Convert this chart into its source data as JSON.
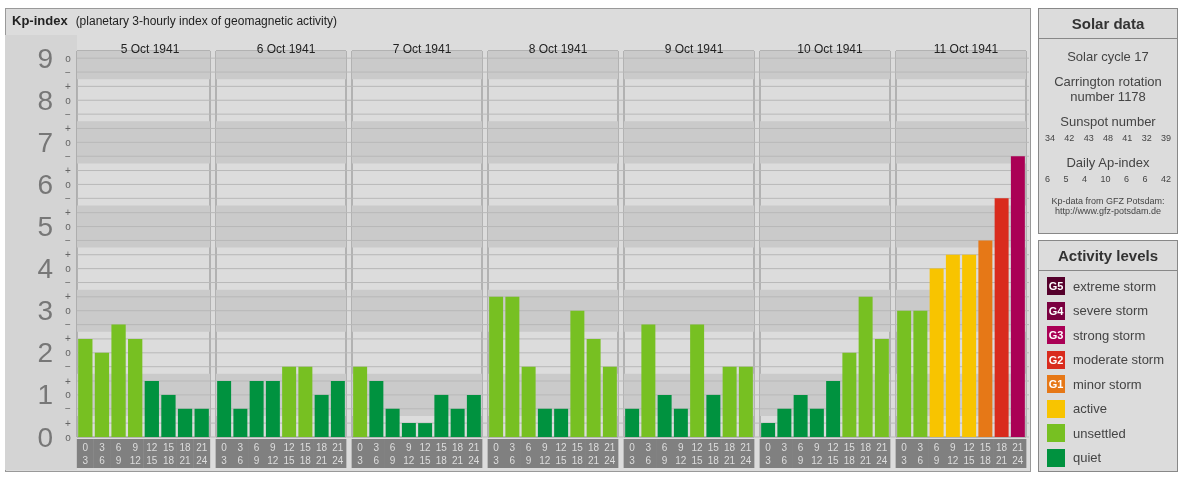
{
  "chart_data": [
    {
      "type": "bar",
      "title": "Kp-index",
      "subtitle": "(planetary 3-hourly index of geomagnetic activity)",
      "xlabel": "5 Oct 1941",
      "categories": [
        "0\n3",
        "3\n6",
        "6\n9",
        "9\n12",
        "12\n15",
        "15\n18",
        "18\n21",
        "21\n24"
      ],
      "values": [
        2.33,
        2,
        2.67,
        2.33,
        1.33,
        1,
        0.67,
        0.67
      ],
      "colors": [
        "#77c022",
        "#77c022",
        "#77c022",
        "#77c022",
        "#00923f",
        "#00923f",
        "#00923f",
        "#00923f"
      ],
      "ylim": [
        0,
        9.17
      ],
      "yticks": [
        0,
        1,
        2,
        3,
        4,
        5,
        6,
        7,
        8,
        9,
        {
          "value": 0.33,
          "label": null
        },
        {
          "value": 0.67,
          "label": null
        },
        {
          "value": 1.33,
          "label": null
        },
        {
          "value": 1.67,
          "label": null
        },
        {
          "value": 2.33,
          "label": null
        },
        {
          "value": 2.67,
          "label": null
        },
        {
          "value": 3.33,
          "label": null
        },
        {
          "value": 3.67,
          "label": null
        },
        {
          "value": 4.33,
          "label": null
        },
        {
          "value": 4.67,
          "label": null
        },
        {
          "value": 5.33,
          "label": null
        },
        {
          "value": 5.67,
          "label": null
        },
        {
          "value": 6.33,
          "label": null
        },
        {
          "value": 6.67,
          "label": null
        },
        {
          "value": 7.33,
          "label": null
        },
        {
          "value": 7.67,
          "label": null
        },
        {
          "value": 8.33,
          "label": null
        },
        {
          "value": 8.67,
          "label": null
        }
      ],
      "grid": "y",
      "bands": [
        {
          "axis": "y",
          "from": 0.5,
          "to": 1.5,
          "color": "#cacaca"
        },
        {
          "axis": "y",
          "from": 2.5,
          "to": 3.5,
          "color": "#cacaca"
        },
        {
          "axis": "y",
          "from": 4.5,
          "to": 5.5,
          "color": "#cacaca"
        },
        {
          "axis": "y",
          "from": 6.5,
          "to": 7.5,
          "color": "#cacaca"
        },
        {
          "axis": "y",
          "from": 8.5,
          "to": 9.17,
          "color": "#cacaca"
        }
      ],
      "annotations": [
        "o",
        "+",
        "−",
        "o",
        "+",
        "−",
        "o",
        "+",
        "−",
        "o",
        "+",
        "−",
        "o",
        "+",
        "−",
        "o",
        "+",
        "−",
        "o",
        "+",
        "−",
        "o",
        "+",
        "−",
        "o",
        "+",
        "−",
        "o"
      ]
    },
    {
      "type": "bar",
      "xlabel": "6 Oct 1941",
      "categories": [
        "0\n3",
        "3\n6",
        "6\n9",
        "9\n12",
        "12\n15",
        "15\n18",
        "18\n21",
        "21\n24"
      ],
      "values": [
        1.33,
        0.67,
        1.33,
        1.33,
        1.67,
        1.67,
        1,
        1.33
      ],
      "colors": [
        "#00923f",
        "#00923f",
        "#00923f",
        "#00923f",
        "#77c022",
        "#77c022",
        "#00923f",
        "#00923f"
      ],
      "ylim": [
        0,
        9.17
      ],
      "yticks": [
        0,
        0.33,
        0.67,
        1,
        1.33,
        1.67,
        2,
        2.33,
        2.67,
        3,
        3.33,
        3.67,
        4,
        4.33,
        4.67,
        5,
        5.33,
        5.67,
        6,
        6.33,
        6.67,
        7,
        7.33,
        7.67,
        8,
        8.33,
        8.67,
        9
      ],
      "tick_labels": "x",
      "grid": "y",
      "bands": [
        {
          "axis": "y",
          "from": 0.5,
          "to": 1.5,
          "color": "#cacaca"
        },
        {
          "axis": "y",
          "from": 2.5,
          "to": 3.5,
          "color": "#cacaca"
        },
        {
          "axis": "y",
          "from": 4.5,
          "to": 5.5,
          "color": "#cacaca"
        },
        {
          "axis": "y",
          "from": 6.5,
          "to": 7.5,
          "color": "#cacaca"
        },
        {
          "axis": "y",
          "from": 8.5,
          "to": 9.17,
          "color": "#cacaca"
        }
      ]
    },
    {
      "type": "bar",
      "xlabel": "7 Oct 1941",
      "categories": [
        "0\n3",
        "3\n6",
        "6\n9",
        "9\n12",
        "12\n15",
        "15\n18",
        "18\n21",
        "21\n24"
      ],
      "values": [
        1.67,
        1.33,
        0.67,
        0.33,
        0.33,
        1,
        0.67,
        1
      ],
      "colors": [
        "#77c022",
        "#00923f",
        "#00923f",
        "#00923f",
        "#00923f",
        "#00923f",
        "#00923f",
        "#00923f"
      ],
      "ylim": [
        0,
        9.17
      ],
      "yticks": [
        0,
        0.33,
        0.67,
        1,
        1.33,
        1.67,
        2,
        2.33,
        2.67,
        3,
        3.33,
        3.67,
        4,
        4.33,
        4.67,
        5,
        5.33,
        5.67,
        6,
        6.33,
        6.67,
        7,
        7.33,
        7.67,
        8,
        8.33,
        8.67,
        9
      ],
      "tick_labels": "x",
      "grid": "y",
      "bands": [
        {
          "axis": "y",
          "from": 0.5,
          "to": 1.5,
          "color": "#cacaca"
        },
        {
          "axis": "y",
          "from": 2.5,
          "to": 3.5,
          "color": "#cacaca"
        },
        {
          "axis": "y",
          "from": 4.5,
          "to": 5.5,
          "color": "#cacaca"
        },
        {
          "axis": "y",
          "from": 6.5,
          "to": 7.5,
          "color": "#cacaca"
        },
        {
          "axis": "y",
          "from": 8.5,
          "to": 9.17,
          "color": "#cacaca"
        }
      ]
    },
    {
      "type": "bar",
      "xlabel": "8 Oct 1941",
      "categories": [
        "0\n3",
        "3\n6",
        "6\n9",
        "9\n12",
        "12\n15",
        "15\n18",
        "18\n21",
        "21\n24"
      ],
      "values": [
        3.33,
        3.33,
        1.67,
        0.67,
        0.67,
        3,
        2.33,
        1.67
      ],
      "colors": [
        "#77c022",
        "#77c022",
        "#77c022",
        "#00923f",
        "#00923f",
        "#77c022",
        "#77c022",
        "#77c022"
      ],
      "ylim": [
        0,
        9.17
      ],
      "yticks": [
        0,
        0.33,
        0.67,
        1,
        1.33,
        1.67,
        2,
        2.33,
        2.67,
        3,
        3.33,
        3.67,
        4,
        4.33,
        4.67,
        5,
        5.33,
        5.67,
        6,
        6.33,
        6.67,
        7,
        7.33,
        7.67,
        8,
        8.33,
        8.67,
        9
      ],
      "tick_labels": "x",
      "grid": "y",
      "bands": [
        {
          "axis": "y",
          "from": 0.5,
          "to": 1.5,
          "color": "#cacaca"
        },
        {
          "axis": "y",
          "from": 2.5,
          "to": 3.5,
          "color": "#cacaca"
        },
        {
          "axis": "y",
          "from": 4.5,
          "to": 5.5,
          "color": "#cacaca"
        },
        {
          "axis": "y",
          "from": 6.5,
          "to": 7.5,
          "color": "#cacaca"
        },
        {
          "axis": "y",
          "from": 8.5,
          "to": 9.17,
          "color": "#cacaca"
        }
      ]
    },
    {
      "type": "bar",
      "xlabel": "9 Oct 1941",
      "categories": [
        "0\n3",
        "3\n6",
        "6\n9",
        "9\n12",
        "12\n15",
        "15\n18",
        "18\n21",
        "21\n24"
      ],
      "values": [
        0.67,
        2.67,
        1,
        0.67,
        2.67,
        1,
        1.67,
        1.67
      ],
      "colors": [
        "#00923f",
        "#77c022",
        "#00923f",
        "#00923f",
        "#77c022",
        "#00923f",
        "#77c022",
        "#77c022"
      ],
      "ylim": [
        0,
        9.17
      ],
      "yticks": [
        0,
        0.33,
        0.67,
        1,
        1.33,
        1.67,
        2,
        2.33,
        2.67,
        3,
        3.33,
        3.67,
        4,
        4.33,
        4.67,
        5,
        5.33,
        5.67,
        6,
        6.33,
        6.67,
        7,
        7.33,
        7.67,
        8,
        8.33,
        8.67,
        9
      ],
      "tick_labels": "x",
      "grid": "y",
      "bands": [
        {
          "axis": "y",
          "from": 0.5,
          "to": 1.5,
          "color": "#cacaca"
        },
        {
          "axis": "y",
          "from": 2.5,
          "to": 3.5,
          "color": "#cacaca"
        },
        {
          "axis": "y",
          "from": 4.5,
          "to": 5.5,
          "color": "#cacaca"
        },
        {
          "axis": "y",
          "from": 6.5,
          "to": 7.5,
          "color": "#cacaca"
        },
        {
          "axis": "y",
          "from": 8.5,
          "to": 9.17,
          "color": "#cacaca"
        }
      ]
    },
    {
      "type": "bar",
      "xlabel": "10 Oct 1941",
      "categories": [
        "0\n3",
        "3\n6",
        "6\n9",
        "9\n12",
        "12\n15",
        "15\n18",
        "18\n21",
        "21\n24"
      ],
      "values": [
        0.33,
        0.67,
        1,
        0.67,
        1.33,
        2,
        3.33,
        2.33
      ],
      "colors": [
        "#00923f",
        "#00923f",
        "#00923f",
        "#00923f",
        "#00923f",
        "#77c022",
        "#77c022",
        "#77c022"
      ],
      "ylim": [
        0,
        9.17
      ],
      "yticks": [
        0,
        0.33,
        0.67,
        1,
        1.33,
        1.67,
        2,
        2.33,
        2.67,
        3,
        3.33,
        3.67,
        4,
        4.33,
        4.67,
        5,
        5.33,
        5.67,
        6,
        6.33,
        6.67,
        7,
        7.33,
        7.67,
        8,
        8.33,
        8.67,
        9
      ],
      "tick_labels": "x",
      "grid": "y",
      "bands": [
        {
          "axis": "y",
          "from": 0.5,
          "to": 1.5,
          "color": "#cacaca"
        },
        {
          "axis": "y",
          "from": 2.5,
          "to": 3.5,
          "color": "#cacaca"
        },
        {
          "axis": "y",
          "from": 4.5,
          "to": 5.5,
          "color": "#cacaca"
        },
        {
          "axis": "y",
          "from": 6.5,
          "to": 7.5,
          "color": "#cacaca"
        },
        {
          "axis": "y",
          "from": 8.5,
          "to": 9.17,
          "color": "#cacaca"
        }
      ]
    },
    {
      "type": "bar",
      "xlabel": "11 Oct 1941",
      "categories": [
        "0\n3",
        "3\n6",
        "6\n9",
        "9\n12",
        "12\n15",
        "15\n18",
        "18\n21",
        "21\n24"
      ],
      "values": [
        3,
        3,
        4,
        4.33,
        4.33,
        4.67,
        5.67,
        6.67
      ],
      "colors": [
        "#77c022",
        "#77c022",
        "#f8c400",
        "#f8c400",
        "#f8c400",
        "#e67817",
        "#d92b1d",
        "#aa0055"
      ],
      "ylim": [
        0,
        9.17
      ],
      "yticks": [
        0,
        0.33,
        0.67,
        1,
        1.33,
        1.67,
        2,
        2.33,
        2.67,
        3,
        3.33,
        3.67,
        4,
        4.33,
        4.67,
        5,
        5.33,
        5.67,
        6,
        6.33,
        6.67,
        7,
        7.33,
        7.67,
        8,
        8.33,
        8.67,
        9
      ],
      "tick_labels": "x",
      "grid": "y",
      "bands": [
        {
          "axis": "y",
          "from": 0.5,
          "to": 1.5,
          "color": "#cacaca"
        },
        {
          "axis": "y",
          "from": 2.5,
          "to": 3.5,
          "color": "#cacaca"
        },
        {
          "axis": "y",
          "from": 4.5,
          "to": 5.5,
          "color": "#cacaca"
        },
        {
          "axis": "y",
          "from": 6.5,
          "to": 7.5,
          "color": "#cacaca"
        },
        {
          "axis": "y",
          "from": 8.5,
          "to": 9.17,
          "color": "#cacaca"
        }
      ]
    },
    {
      "type": "other",
      "title": "Solar data",
      "annotations": [
        "Solar cycle 17",
        "Carrington rotation number 1178",
        "Sunspot number",
        "34 42 43 48 41 32 39",
        "Daily Ap-index",
        "6 5 4 10 6 6 42",
        "Kp-data from GFZ Potsdam: http://www.gfz-potsdam.de"
      ]
    },
    {
      "type": "other",
      "title": "Activity levels",
      "categories": [
        "extreme storm",
        "severe storm",
        "strong storm",
        "moderate storm",
        "minor storm",
        "active",
        "unsettled",
        "quiet"
      ],
      "colors": [
        "#55002b",
        "#7a0040",
        "#aa0055",
        "#d92b1d",
        "#e67817",
        "#f8c400",
        "#77c022",
        "#00923f"
      ],
      "annotations": [
        "G5",
        "G4",
        "G3",
        "G2",
        "G1"
      ]
    }
  ]
}
